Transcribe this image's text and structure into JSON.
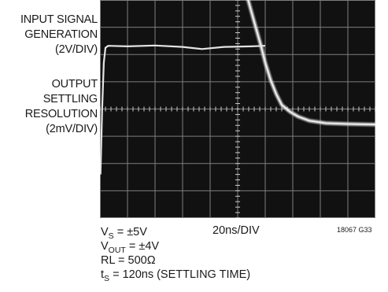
{
  "chart_data": {
    "type": "line",
    "title": "",
    "channel_labels": [
      [
        "INPUT SIGNAL",
        "GENERATION",
        "(2V/DIV)"
      ],
      [
        "OUTPUT",
        "SETTLING",
        "RESOLUTION",
        "(2mV/DIV)"
      ]
    ],
    "timebase": "20ns/DIV",
    "divisions": {
      "x": 10,
      "y": 8
    },
    "conditions": {
      "vs": {
        "main": "V",
        "sub": "S",
        "rest": " = ±5V"
      },
      "vout": {
        "main": "V",
        "sub": "OUT",
        "rest": " = ±4V"
      },
      "rl": "RL = 500Ω",
      "ts": {
        "main": "t",
        "sub": "S",
        "rest": " = 120ns (SETTLING TIME)"
      }
    },
    "figure_id": "18067 G33",
    "series": [
      {
        "values_div": [
          [
            0.02,
            6.4
          ],
          [
            0.08,
            4.0
          ],
          [
            0.14,
            2.3
          ],
          [
            0.2,
            1.75
          ],
          [
            0.3,
            1.68
          ],
          [
            1.0,
            1.7
          ],
          [
            2.0,
            1.67
          ],
          [
            3.0,
            1.72
          ],
          [
            3.7,
            1.8
          ],
          [
            4.5,
            1.72
          ],
          [
            5.5,
            1.7
          ],
          [
            6.0,
            1.68
          ]
        ]
      },
      {
        "values_div": [
          [
            5.35,
            -0.1
          ],
          [
            5.6,
            0.8
          ],
          [
            5.85,
            1.7
          ],
          [
            6.0,
            2.3
          ],
          [
            6.2,
            2.95
          ],
          [
            6.4,
            3.45
          ],
          [
            6.6,
            3.85
          ],
          [
            6.9,
            4.1
          ],
          [
            7.2,
            4.28
          ],
          [
            7.6,
            4.43
          ],
          [
            8.2,
            4.52
          ],
          [
            9.0,
            4.55
          ],
          [
            10.0,
            4.57
          ]
        ]
      }
    ]
  }
}
